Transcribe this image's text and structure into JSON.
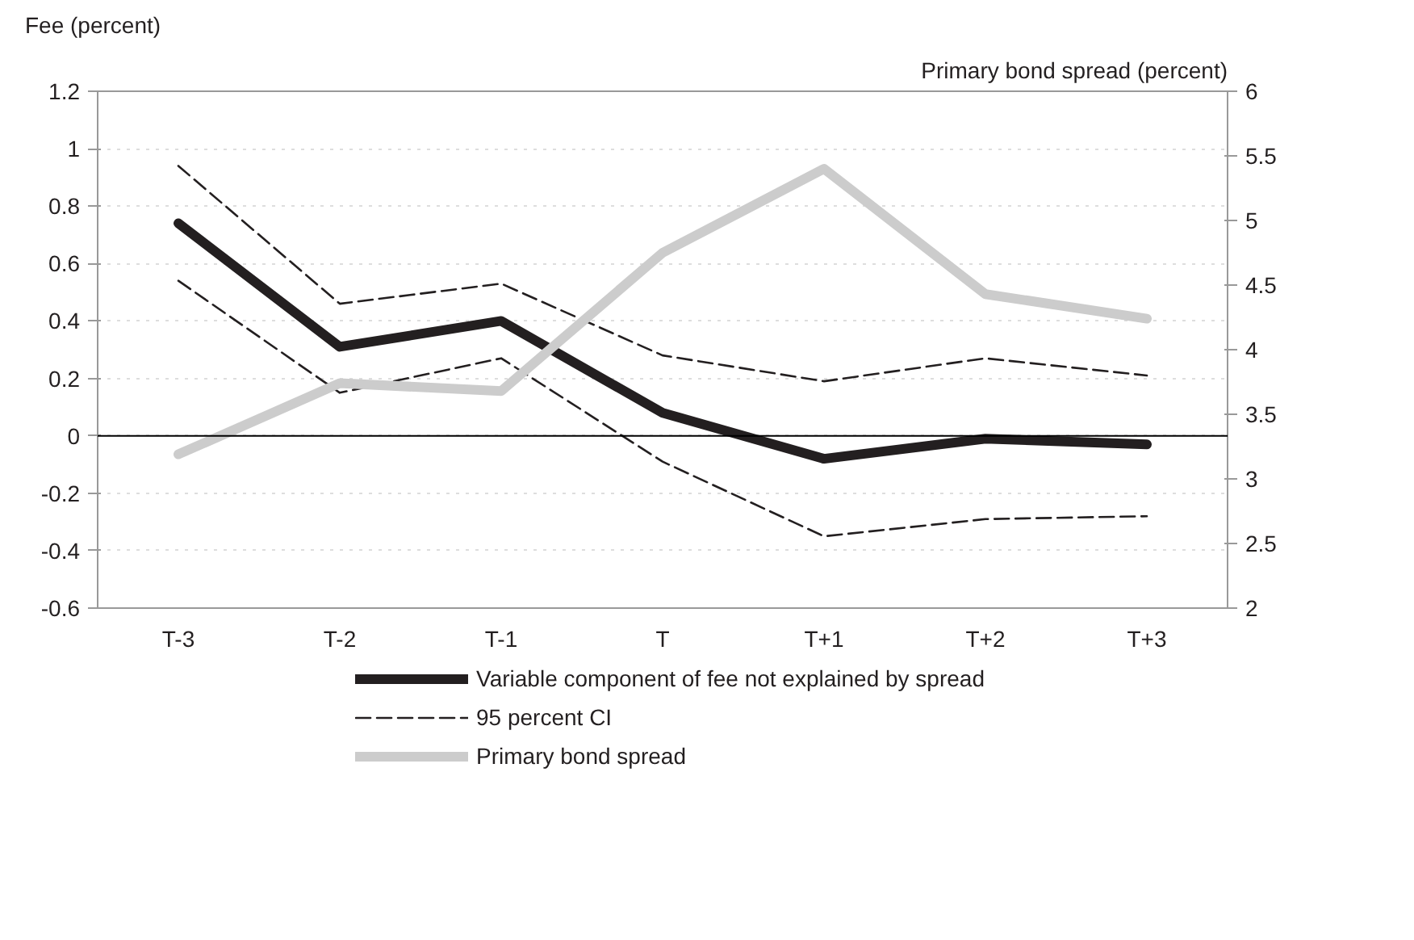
{
  "chart_data": {
    "type": "line",
    "categories": [
      "T-3",
      "T-2",
      "T-1",
      "T",
      "T+1",
      "T+2",
      "T+3"
    ],
    "ylabel": "Fee (percent)",
    "y2label": "Primary bond spread (percent)",
    "ylim": [
      -0.6,
      1.2
    ],
    "yticks": [
      -0.6,
      -0.4,
      -0.2,
      0,
      0.2,
      0.4,
      0.6,
      0.8,
      1,
      1.2
    ],
    "y2lim": [
      2,
      6
    ],
    "y2ticks": [
      2,
      2.5,
      3,
      3.5,
      4,
      4.5,
      5,
      5.5,
      6
    ],
    "grid": "y",
    "legend": "bottom",
    "marker": "none",
    "ref_lines": [
      {
        "axis": "y",
        "value": 0,
        "color": "#000000",
        "line_style": "solid"
      }
    ],
    "series": [
      {
        "name": "Variable component of fee not explained by spread",
        "color": "#231f20",
        "line_style": "solid",
        "values": [
          0.74,
          0.31,
          0.4,
          0.08,
          -0.08,
          -0.01,
          -0.03
        ]
      },
      {
        "name": "95 percent CI",
        "color": "#231f20",
        "line_style": "dashed",
        "values": [
          0.94,
          0.46,
          0.53,
          0.28,
          0.19,
          0.27,
          0.21
        ]
      },
      {
        "color": "#231f20",
        "line_style": "dashed",
        "values": [
          0.54,
          0.15,
          0.27,
          -0.09,
          -0.35,
          -0.29,
          -0.28
        ]
      },
      {
        "name": "Primary bond spread",
        "color": "#cccccc",
        "line_style": "solid",
        "axis": "y2",
        "values": [
          3.19,
          3.74,
          3.68,
          4.75,
          5.4,
          4.43,
          4.24
        ]
      }
    ]
  }
}
